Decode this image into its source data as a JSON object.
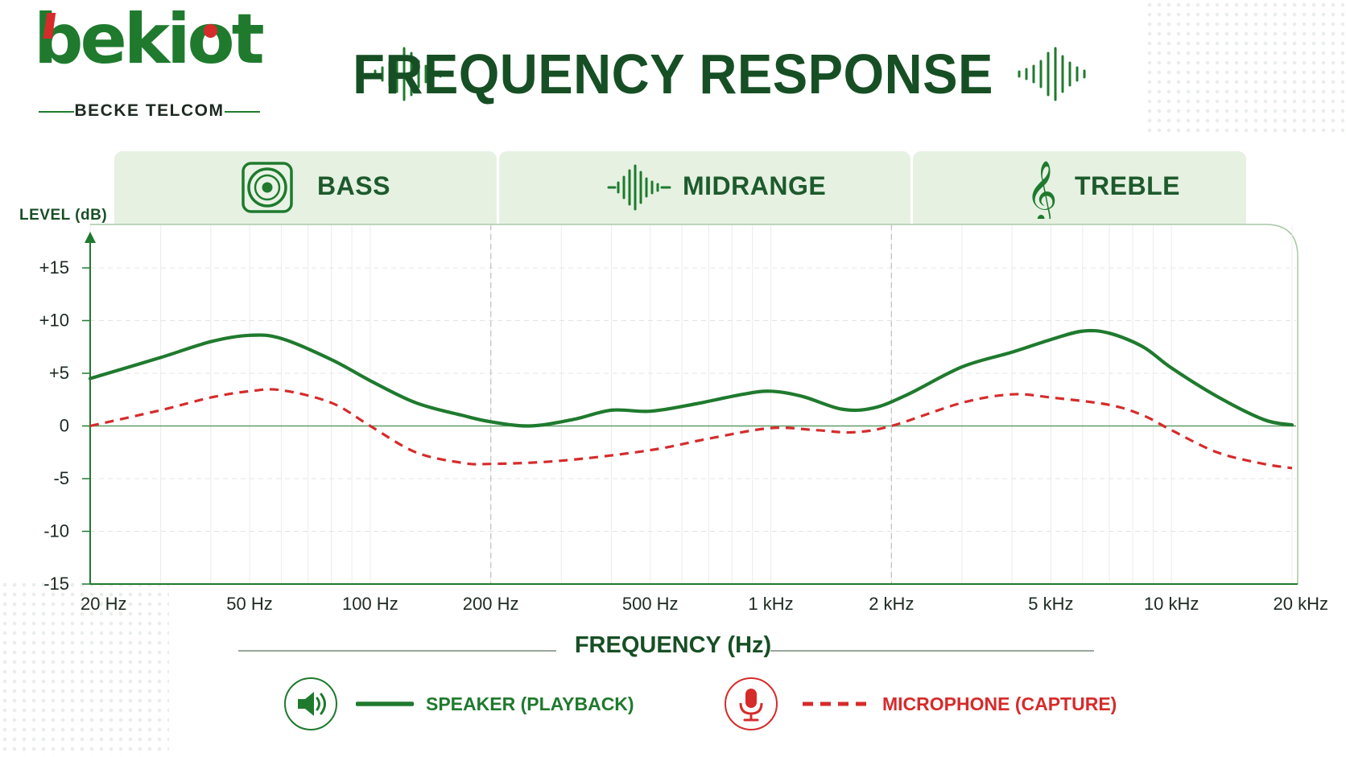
{
  "brand": {
    "name": "bekiot",
    "tagline": "BECKE TELCOM",
    "green": "#1f7a2e",
    "red": "#d62b2b"
  },
  "title": "FREQUENCY RESPONSE",
  "bands": [
    {
      "label": "BASS",
      "icon": "speaker-woofer-icon"
    },
    {
      "label": "MIDRANGE",
      "icon": "sound-wave-icon"
    },
    {
      "label": "TREBLE",
      "icon": "treble-clef-icon"
    }
  ],
  "chart_data": {
    "type": "line",
    "title": "FREQUENCY RESPONSE",
    "xlabel": "FREQUENCY (Hz)",
    "ylabel": "LEVEL (dB)",
    "x_scale": "log",
    "xlim": [
      20,
      20000
    ],
    "ylim": [
      -15,
      15
    ],
    "grid": true,
    "legend_position": "bottom",
    "x_ticks": [
      {
        "value": 20,
        "label": "20 Hz"
      },
      {
        "value": 50,
        "label": "50 Hz"
      },
      {
        "value": 100,
        "label": "100 Hz"
      },
      {
        "value": 200,
        "label": "200 Hz"
      },
      {
        "value": 500,
        "label": "500 Hz"
      },
      {
        "value": 1000,
        "label": "1 kHz"
      },
      {
        "value": 2000,
        "label": "2 kHz"
      },
      {
        "value": 5000,
        "label": "5 kHz"
      },
      {
        "value": 10000,
        "label": "10 kHz"
      },
      {
        "value": 20000,
        "label": "20 kHz"
      }
    ],
    "y_ticks": [
      {
        "value": 15,
        "label": "+15"
      },
      {
        "value": 10,
        "label": "+10"
      },
      {
        "value": 5,
        "label": "+5"
      },
      {
        "value": 0,
        "label": "0"
      },
      {
        "value": -5,
        "label": "-5"
      },
      {
        "value": -10,
        "label": "-10"
      },
      {
        "value": -15,
        "label": "-15"
      }
    ],
    "band_boundaries_hz": [
      200,
      2000
    ],
    "series": [
      {
        "name": "SPEAKER (PLAYBACK)",
        "color": "#1f7a2e",
        "style": "solid",
        "points": [
          [
            20,
            4.5
          ],
          [
            30,
            6.5
          ],
          [
            40,
            8.0
          ],
          [
            50,
            8.6
          ],
          [
            60,
            8.3
          ],
          [
            80,
            6.3
          ],
          [
            100,
            4.3
          ],
          [
            130,
            2.2
          ],
          [
            170,
            1.0
          ],
          [
            200,
            0.4
          ],
          [
            250,
            0.0
          ],
          [
            320,
            0.6
          ],
          [
            400,
            1.5
          ],
          [
            500,
            1.4
          ],
          [
            650,
            2.1
          ],
          [
            850,
            3.0
          ],
          [
            1000,
            3.3
          ],
          [
            1200,
            2.8
          ],
          [
            1500,
            1.6
          ],
          [
            1800,
            1.7
          ],
          [
            2200,
            3.0
          ],
          [
            3000,
            5.6
          ],
          [
            4000,
            7.0
          ],
          [
            5000,
            8.2
          ],
          [
            6000,
            9.0
          ],
          [
            7000,
            8.8
          ],
          [
            8500,
            7.5
          ],
          [
            10000,
            5.5
          ],
          [
            13000,
            2.8
          ],
          [
            17000,
            0.6
          ],
          [
            20000,
            0.1
          ]
        ]
      },
      {
        "name": "MICROPHONE (CAPTURE)",
        "color": "#d62b2b",
        "style": "dashed",
        "points": [
          [
            20,
            0.0
          ],
          [
            30,
            1.5
          ],
          [
            40,
            2.7
          ],
          [
            50,
            3.3
          ],
          [
            60,
            3.4
          ],
          [
            80,
            2.2
          ],
          [
            100,
            0.0
          ],
          [
            130,
            -2.5
          ],
          [
            170,
            -3.5
          ],
          [
            200,
            -3.6
          ],
          [
            300,
            -3.3
          ],
          [
            500,
            -2.3
          ],
          [
            700,
            -1.2
          ],
          [
            1000,
            -0.2
          ],
          [
            1300,
            -0.4
          ],
          [
            1600,
            -0.6
          ],
          [
            2000,
            0.0
          ],
          [
            3000,
            2.2
          ],
          [
            4000,
            3.0
          ],
          [
            5000,
            2.7
          ],
          [
            7000,
            2.0
          ],
          [
            8500,
            1.0
          ],
          [
            10000,
            -0.4
          ],
          [
            13000,
            -2.5
          ],
          [
            17000,
            -3.6
          ],
          [
            20000,
            -4.0
          ]
        ]
      }
    ]
  }
}
